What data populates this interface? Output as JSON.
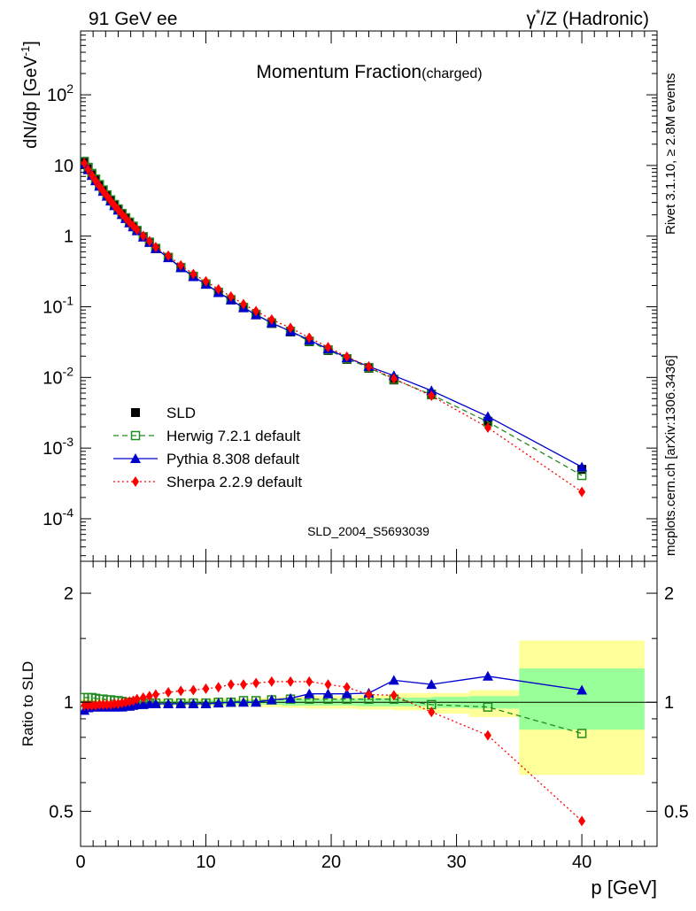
{
  "header": {
    "left": "91 GeV ee",
    "right_prefix": "γ",
    "right_sup": "*",
    "right_suffix": "/Z (Hadronic)"
  },
  "side_labels": {
    "rivet": "Rivet 3.1.10, ≥ 2.8M events",
    "mcplots": "mcplots.cern.ch [arXiv:1306.3436]"
  },
  "watermark": "SLD_2004_S5693039",
  "colors": {
    "data": "#000000",
    "herwig": "#228b22",
    "pythia": "#0000cd",
    "sherpa": "#ff0000",
    "band_outer": "#ffff99",
    "band_inner": "#99ff99"
  },
  "chart_data": [
    {
      "type": "line",
      "title": "Momentum Fraction",
      "title_sub": "(charged)",
      "xlabel": "p [GeV]",
      "ylabel": "dN/dp [GeV",
      "ylabel_sup": "-1",
      "ylabel_close": "]",
      "xlim": [
        0,
        46
      ],
      "ylim": [
        2.5e-05,
        800
      ],
      "yscale": "log",
      "x_ticks": [
        0,
        10,
        20,
        30,
        40
      ],
      "y_tick_labels": [
        "10^-4",
        "10^-3",
        "10^-2",
        "10^-1",
        "1",
        "10",
        "10^2"
      ],
      "legend_position": "bottom-left",
      "series": [
        {
          "name": "SLD",
          "marker": "filled-square",
          "x": [
            0.3,
            0.6,
            0.9,
            1.2,
            1.5,
            1.8,
            2.1,
            2.4,
            2.7,
            3.0,
            3.3,
            3.6,
            3.9,
            4.2,
            4.5,
            5.0,
            5.5,
            6.0,
            7.0,
            8.0,
            9.0,
            10.0,
            11.0,
            12.0,
            13.0,
            14.0,
            15.25,
            16.75,
            18.25,
            19.75,
            21.25,
            23.0,
            25.0,
            28.0,
            32.5,
            40.0
          ],
          "values": [
            11.0,
            9.0,
            7.4,
            6.2,
            5.2,
            4.4,
            3.75,
            3.2,
            2.75,
            2.38,
            2.06,
            1.8,
            1.56,
            1.37,
            1.2,
            0.98,
            0.82,
            0.67,
            0.5,
            0.36,
            0.27,
            0.21,
            0.16,
            0.125,
            0.097,
            0.077,
            0.058,
            0.044,
            0.032,
            0.024,
            0.018,
            0.0135,
            0.0092,
            0.0058,
            0.0024,
            0.0005
          ]
        },
        {
          "name": "Herwig 7.2.1 default",
          "marker": "open-square",
          "line": "dashed",
          "x": [
            0.3,
            0.6,
            0.9,
            1.2,
            1.5,
            1.8,
            2.1,
            2.4,
            2.7,
            3.0,
            3.3,
            3.6,
            3.9,
            4.2,
            4.5,
            5.0,
            5.5,
            6.0,
            7.0,
            8.0,
            9.0,
            10.0,
            11.0,
            12.0,
            13.0,
            14.0,
            15.25,
            16.75,
            18.25,
            19.75,
            21.25,
            23.0,
            25.0,
            28.0,
            32.5,
            40.0
          ],
          "values": [
            11.4,
            9.4,
            7.7,
            6.4,
            5.35,
            4.5,
            3.83,
            3.26,
            2.8,
            2.42,
            2.09,
            1.82,
            1.58,
            1.38,
            1.2,
            0.98,
            0.82,
            0.67,
            0.5,
            0.36,
            0.27,
            0.21,
            0.16,
            0.126,
            0.098,
            0.078,
            0.059,
            0.045,
            0.0325,
            0.0245,
            0.0184,
            0.0138,
            0.0094,
            0.0057,
            0.00235,
            0.00041
          ]
        },
        {
          "name": "Pythia 8.308 default",
          "marker": "filled-triangle",
          "line": "solid",
          "x": [
            0.3,
            0.6,
            0.9,
            1.2,
            1.5,
            1.8,
            2.1,
            2.4,
            2.7,
            3.0,
            3.3,
            3.6,
            3.9,
            4.2,
            4.5,
            5.0,
            5.5,
            6.0,
            7.0,
            8.0,
            9.0,
            10.0,
            11.0,
            12.0,
            13.0,
            14.0,
            15.25,
            16.75,
            18.25,
            19.75,
            21.25,
            23.0,
            25.0,
            28.0,
            32.5,
            40.0
          ],
          "values": [
            10.5,
            8.7,
            7.2,
            6.05,
            5.07,
            4.3,
            3.67,
            3.13,
            2.69,
            2.33,
            2.02,
            1.77,
            1.54,
            1.35,
            1.19,
            0.97,
            0.815,
            0.665,
            0.495,
            0.357,
            0.267,
            0.208,
            0.159,
            0.125,
            0.097,
            0.077,
            0.059,
            0.045,
            0.0338,
            0.0253,
            0.019,
            0.0143,
            0.0106,
            0.0065,
            0.0028,
            0.00054
          ]
        },
        {
          "name": "Sherpa 2.2.9 default",
          "marker": "filled-diamond",
          "line": "dotted",
          "x": [
            0.3,
            0.6,
            0.9,
            1.2,
            1.5,
            1.8,
            2.1,
            2.4,
            2.7,
            3.0,
            3.3,
            3.6,
            3.9,
            4.2,
            4.5,
            5.0,
            5.5,
            6.0,
            7.0,
            8.0,
            9.0,
            10.0,
            11.0,
            12.0,
            13.0,
            14.0,
            15.25,
            16.75,
            18.25,
            19.75,
            21.25,
            23.0,
            25.0,
            28.0,
            32.5,
            40.0
          ],
          "values": [
            10.8,
            8.8,
            7.25,
            6.08,
            5.12,
            4.33,
            3.7,
            3.16,
            2.72,
            2.36,
            2.05,
            1.8,
            1.57,
            1.39,
            1.23,
            1.01,
            0.85,
            0.7,
            0.53,
            0.385,
            0.291,
            0.229,
            0.177,
            0.14,
            0.109,
            0.087,
            0.066,
            0.0503,
            0.0365,
            0.0268,
            0.0197,
            0.0142,
            0.0096,
            0.0055,
            0.00195,
            0.00024
          ]
        }
      ]
    },
    {
      "type": "line",
      "ylabel": "Ratio to SLD",
      "xlabel": "p [GeV]",
      "xlim": [
        0,
        46
      ],
      "ylim": [
        0.4,
        2.45
      ],
      "yscale": "log",
      "y_ticks": [
        0.5,
        1,
        2
      ],
      "x_ticks": [
        0,
        10,
        20,
        30,
        40
      ],
      "uncertainty_bands": {
        "edges": [
          0,
          2,
          4,
          6,
          8,
          10,
          12,
          14,
          16,
          18,
          20,
          22,
          25,
          28,
          31,
          35,
          45
        ],
        "outer": [
          [
            0.98,
            1.02
          ],
          [
            0.985,
            1.015
          ],
          [
            0.985,
            1.015
          ],
          [
            0.98,
            1.02
          ],
          [
            0.98,
            1.02
          ],
          [
            0.975,
            1.025
          ],
          [
            0.975,
            1.025
          ],
          [
            0.97,
            1.03
          ],
          [
            0.965,
            1.035
          ],
          [
            0.96,
            1.04
          ],
          [
            0.96,
            1.04
          ],
          [
            0.955,
            1.045
          ],
          [
            0.95,
            1.06
          ],
          [
            0.93,
            1.06
          ],
          [
            0.91,
            1.08
          ],
          [
            0.63,
            1.48
          ]
        ],
        "inner": [
          [
            0.99,
            1.01
          ],
          [
            0.99,
            1.01
          ],
          [
            0.99,
            1.01
          ],
          [
            0.99,
            1.01
          ],
          [
            0.99,
            1.01
          ],
          [
            0.985,
            1.015
          ],
          [
            0.985,
            1.015
          ],
          [
            0.985,
            1.015
          ],
          [
            0.98,
            1.02
          ],
          [
            0.98,
            1.02
          ],
          [
            0.98,
            1.02
          ],
          [
            0.975,
            1.025
          ],
          [
            0.975,
            1.03
          ],
          [
            0.965,
            1.035
          ],
          [
            0.96,
            1.04
          ],
          [
            0.84,
            1.24
          ]
        ]
      },
      "series": [
        {
          "name": "Herwig 7.2.1 default",
          "x": [
            0.3,
            0.6,
            0.9,
            1.2,
            1.5,
            1.8,
            2.1,
            2.4,
            2.7,
            3.0,
            3.3,
            3.6,
            3.9,
            4.2,
            4.5,
            5.0,
            5.5,
            6.0,
            7.0,
            8.0,
            9.0,
            10.0,
            11.0,
            12.0,
            13.0,
            14.0,
            15.25,
            16.75,
            18.25,
            19.75,
            21.25,
            23.0,
            25.0,
            28.0,
            32.5,
            40.0
          ],
          "values": [
            1.03,
            1.03,
            1.03,
            1.025,
            1.02,
            1.02,
            1.015,
            1.015,
            1.01,
            1.01,
            1.005,
            1.0,
            1.0,
            1.0,
            1.0,
            0.995,
            0.995,
            0.995,
            0.995,
            0.995,
            0.995,
            0.995,
            1.0,
            1.0,
            1.01,
            1.01,
            1.015,
            1.02,
            1.02,
            1.02,
            1.02,
            1.02,
            1.02,
            0.985,
            0.97,
            0.82
          ]
        },
        {
          "name": "Pythia 8.308 default",
          "x": [
            0.3,
            0.6,
            0.9,
            1.2,
            1.5,
            1.8,
            2.1,
            2.4,
            2.7,
            3.0,
            3.3,
            3.6,
            3.9,
            4.2,
            4.5,
            5.0,
            5.5,
            6.0,
            7.0,
            8.0,
            9.0,
            10.0,
            11.0,
            12.0,
            13.0,
            14.0,
            15.25,
            16.75,
            18.25,
            19.75,
            21.25,
            23.0,
            25.0,
            28.0,
            32.5,
            40.0
          ],
          "values": [
            0.95,
            0.965,
            0.97,
            0.97,
            0.97,
            0.97,
            0.97,
            0.97,
            0.97,
            0.97,
            0.97,
            0.975,
            0.975,
            0.98,
            0.985,
            0.985,
            0.99,
            0.99,
            0.99,
            0.99,
            0.99,
            0.99,
            0.995,
            1.0,
            1.0,
            1.0,
            1.015,
            1.025,
            1.055,
            1.055,
            1.055,
            1.06,
            1.15,
            1.12,
            1.18,
            1.08
          ]
        },
        {
          "name": "Sherpa 2.2.9 default",
          "x": [
            0.3,
            0.6,
            0.9,
            1.2,
            1.5,
            1.8,
            2.1,
            2.4,
            2.7,
            3.0,
            3.3,
            3.6,
            3.9,
            4.2,
            4.5,
            5.0,
            5.5,
            6.0,
            7.0,
            8.0,
            9.0,
            10.0,
            11.0,
            12.0,
            13.0,
            14.0,
            15.25,
            16.75,
            18.25,
            19.75,
            21.25,
            23.0,
            25.0,
            28.0,
            32.5,
            40.0
          ],
          "values": [
            0.98,
            0.98,
            0.98,
            0.98,
            0.985,
            0.985,
            0.985,
            0.985,
            0.99,
            0.99,
            0.995,
            1.0,
            1.005,
            1.01,
            1.02,
            1.03,
            1.04,
            1.05,
            1.065,
            1.075,
            1.08,
            1.09,
            1.1,
            1.12,
            1.12,
            1.13,
            1.14,
            1.14,
            1.14,
            1.12,
            1.1,
            1.05,
            1.045,
            0.94,
            0.81,
            0.47
          ]
        }
      ]
    }
  ]
}
